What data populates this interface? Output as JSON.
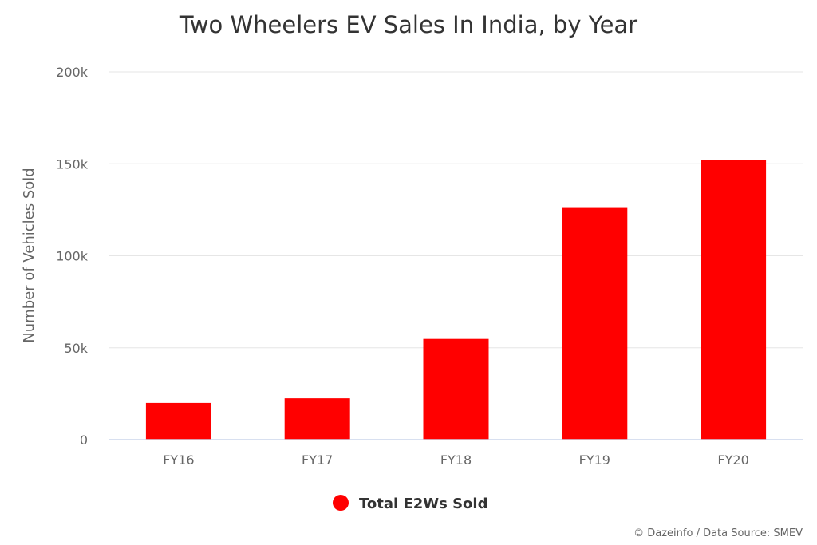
{
  "chart_data": {
    "type": "bar",
    "title": "Two Wheelers EV Sales In India, by Year",
    "ylabel": "Number of Vehicles Sold",
    "xlabel": "",
    "categories": [
      "FY16",
      "FY17",
      "FY18",
      "FY19",
      "FY20"
    ],
    "series": [
      {
        "name": "Total E2Ws Sold",
        "color": "#ff0000",
        "values": [
          20000,
          22500,
          54800,
          126000,
          152000
        ]
      }
    ],
    "ylim": [
      0,
      200000
    ],
    "yticks": [
      0,
      50000,
      100000,
      150000,
      200000
    ],
    "ytick_labels": [
      "0",
      "50k",
      "100k",
      "150k",
      "200k"
    ],
    "grid": true,
    "legend": "bottom-center"
  },
  "credit": "© Dazeinfo / Data Source: SMEV"
}
